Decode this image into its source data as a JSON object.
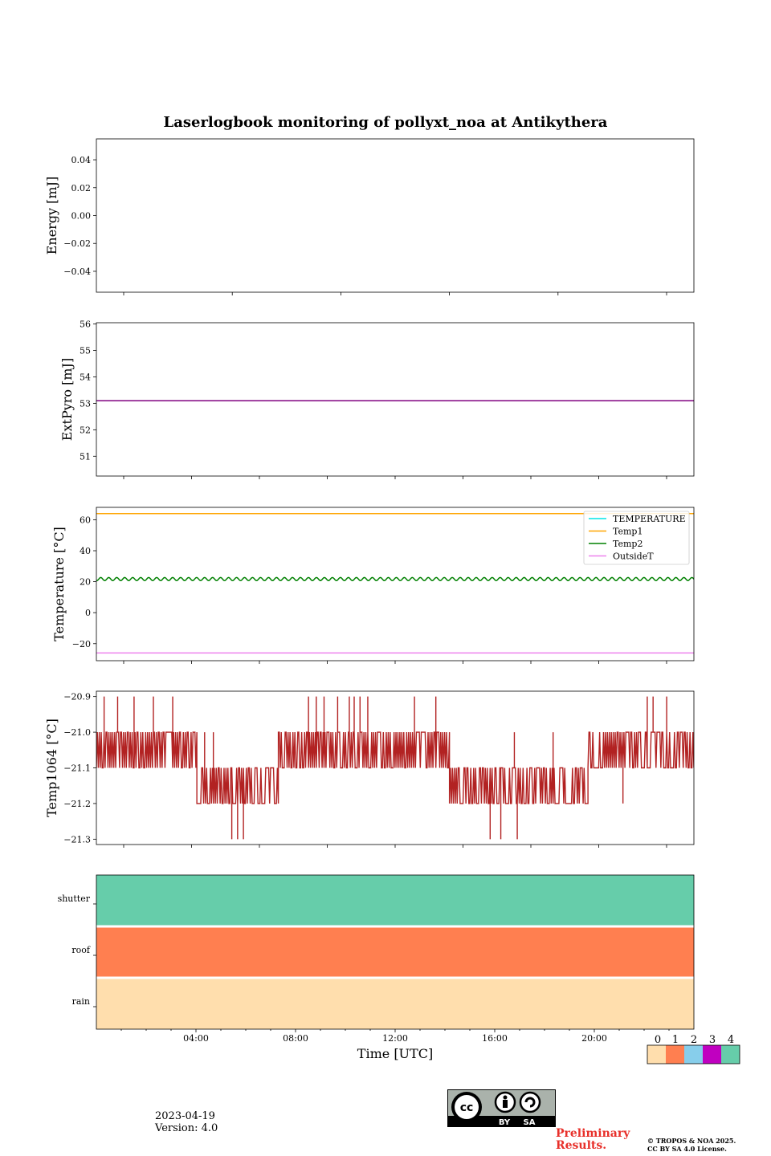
{
  "title": "Laserlogbook monitoring of pollyxt_noa at Antikythera",
  "date": "2023-04-19",
  "version": "Version: 4.0",
  "preliminary": "Preliminary Results.",
  "copyright_line1": "© TROPOS & NOA 2025.",
  "copyright_line2": "CC BY SA 4.0 License.",
  "license_badge": {
    "cc": "cc",
    "by": "BY",
    "sa": "SA"
  },
  "chart_data": [
    {
      "type": "line",
      "ylabel": "Energy [mJ]",
      "ylim": [
        -0.055,
        0.055
      ],
      "yticks": [
        0.04,
        0.02,
        0.0,
        -0.02,
        -0.04
      ],
      "ytick_labels": [
        "0.04",
        "0.02",
        "0.00",
        "−0.02",
        "−0.04"
      ],
      "xlim_hours": [
        -0.5,
        23.5
      ],
      "series": []
    },
    {
      "type": "line",
      "ylabel": "ExtPyro [mJ]",
      "ylim": [
        50.25,
        56.05
      ],
      "yticks": [
        56,
        55,
        54,
        53,
        52,
        51
      ],
      "ytick_labels": [
        "56",
        "55",
        "54",
        "53",
        "52",
        "51"
      ],
      "xlim_hours": [
        0.5,
        22.5
      ],
      "series": [
        {
          "color": "#800080",
          "x_range_hours": [
            0.5,
            22.5
          ],
          "value": 53.1
        }
      ]
    },
    {
      "type": "line",
      "ylabel": "Temperature [°C]",
      "ylim": [
        -31,
        68
      ],
      "yticks": [
        60,
        40,
        20,
        0,
        -20
      ],
      "ytick_labels": [
        "60",
        "40",
        "20",
        "0",
        "−20"
      ],
      "xlim_hours": [
        0.5,
        22.5
      ],
      "legend_position": "top-right",
      "series": [
        {
          "name": "TEMPERATURE",
          "color": "#00e5e5",
          "values": []
        },
        {
          "name": "Temp1",
          "color": "#ffa500",
          "x_range_hours": [
            0.5,
            22.5
          ],
          "value": 64
        },
        {
          "name": "Temp2",
          "color": "#008000",
          "x_range_hours": [
            0.5,
            22.5
          ],
          "value": 21.7,
          "oscillation_amplitude": 1.0
        },
        {
          "name": "OutsideT",
          "color": "#ee82ee",
          "x_range_hours": [
            0.5,
            22.5
          ],
          "value": -26
        }
      ]
    },
    {
      "type": "line",
      "ylabel": "Temp1064 [°C]",
      "ylim": [
        -21.315,
        -20.885
      ],
      "yticks": [
        -20.9,
        -21.0,
        -21.1,
        -21.2,
        -21.3
      ],
      "ytick_labels": [
        "−20.9",
        "−21.0",
        "−21.1",
        "−21.2",
        "−21.3"
      ],
      "xlim_hours": [
        0.5,
        22.5
      ],
      "series": [
        {
          "color": "#b22222",
          "x_range_hours": [
            0.5,
            22.5
          ],
          "segments": [
            {
              "from": 0.5,
              "to": 4.2,
              "low": -21.1,
              "high": -21.0,
              "density": 0.7,
              "spikes": [
                [
                  0.8,
                  -20.9
                ],
                [
                  1.3,
                  -20.9
                ],
                [
                  1.9,
                  -20.9
                ],
                [
                  2.6,
                  -20.9
                ],
                [
                  3.3,
                  -20.9
                ]
              ]
            },
            {
              "from": 4.2,
              "to": 7.2,
              "low": -21.2,
              "high": -21.1,
              "density": 0.55,
              "spikes": [
                [
                  5.5,
                  -21.3
                ],
                [
                  5.7,
                  -21.3
                ],
                [
                  5.9,
                  -21.3
                ],
                [
                  4.5,
                  -21.0
                ],
                [
                  4.8,
                  -21.0
                ]
              ]
            },
            {
              "from": 7.2,
              "to": 13.5,
              "low": -21.1,
              "high": -21.0,
              "density": 0.65,
              "spikes": [
                [
                  8.3,
                  -20.9
                ],
                [
                  8.6,
                  -20.9
                ],
                [
                  8.9,
                  -20.9
                ],
                [
                  9.4,
                  -20.9
                ],
                [
                  9.8,
                  -20.9
                ],
                [
                  10.0,
                  -20.9
                ],
                [
                  10.2,
                  -20.9
                ],
                [
                  10.5,
                  -20.9
                ],
                [
                  12.2,
                  -20.9
                ],
                [
                  13.0,
                  -20.9
                ]
              ]
            },
            {
              "from": 13.5,
              "to": 18.6,
              "low": -21.2,
              "high": -21.1,
              "density": 0.5,
              "spikes": [
                [
                  15.0,
                  -21.3
                ],
                [
                  15.4,
                  -21.3
                ],
                [
                  16.0,
                  -21.3
                ],
                [
                  15.9,
                  -21.0
                ],
                [
                  17.3,
                  -21.0
                ]
              ]
            },
            {
              "from": 18.6,
              "to": 22.5,
              "low": -21.1,
              "high": -21.0,
              "density": 0.6,
              "spikes": [
                [
                  20.8,
                  -20.9
                ],
                [
                  21.0,
                  -20.9
                ],
                [
                  21.5,
                  -20.9
                ],
                [
                  19.9,
                  -21.2
                ]
              ]
            }
          ]
        }
      ]
    },
    {
      "type": "heatmap",
      "rows": [
        "shutter",
        "roof",
        "rain"
      ],
      "row_values": [
        4,
        0,
        0
      ],
      "row_colors": [
        "#66cdaa",
        "#ff7f50",
        "#ffdead"
      ],
      "xlabel": "Time [UTC]",
      "xlim_hours": [
        0,
        24
      ],
      "xticks_hours": [
        4,
        8,
        12,
        16,
        20
      ],
      "xtick_labels": [
        "04:00",
        "08:00",
        "12:00",
        "16:00",
        "20:00"
      ],
      "colorbar": {
        "labels": [
          "0",
          "1",
          "2",
          "3",
          "4"
        ],
        "colors": [
          "#ffdead",
          "#ff7f50",
          "#87ceeb",
          "#c000c0",
          "#66cdaa"
        ]
      }
    }
  ]
}
